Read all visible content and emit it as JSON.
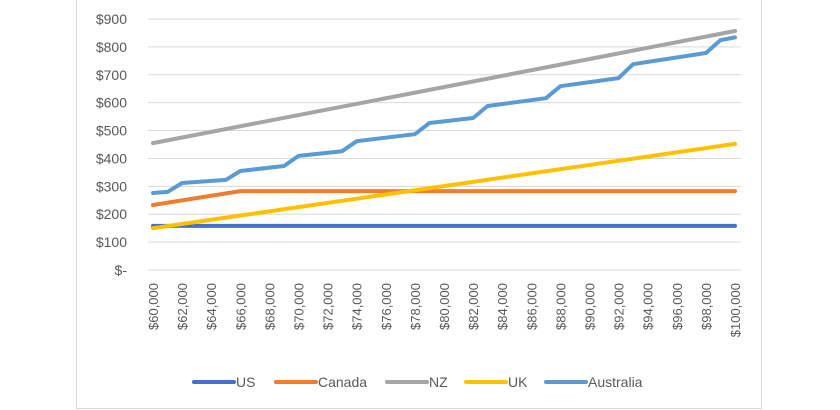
{
  "chart_data": {
    "type": "line",
    "title": "",
    "xlabel": "",
    "ylabel": "",
    "ylim": [
      0,
      900
    ],
    "xlim": [
      60000,
      100000
    ],
    "grid": true,
    "legend_position": "bottom",
    "y_ticks": [
      {
        "value": 0,
        "label": "$-"
      },
      {
        "value": 100,
        "label": "$100"
      },
      {
        "value": 200,
        "label": "$200"
      },
      {
        "value": 300,
        "label": "$300"
      },
      {
        "value": 400,
        "label": "$400"
      },
      {
        "value": 500,
        "label": "$500"
      },
      {
        "value": 600,
        "label": "$600"
      },
      {
        "value": 700,
        "label": "$700"
      },
      {
        "value": 800,
        "label": "$800"
      },
      {
        "value": 900,
        "label": "$900"
      }
    ],
    "x_ticks": [
      {
        "value": 60000,
        "label": "$60,000"
      },
      {
        "value": 62000,
        "label": "$62,000"
      },
      {
        "value": 64000,
        "label": "$64,000"
      },
      {
        "value": 66000,
        "label": "$66,000"
      },
      {
        "value": 68000,
        "label": "$68,000"
      },
      {
        "value": 70000,
        "label": "$70,000"
      },
      {
        "value": 72000,
        "label": "$72,000"
      },
      {
        "value": 74000,
        "label": "$74,000"
      },
      {
        "value": 76000,
        "label": "$76,000"
      },
      {
        "value": 78000,
        "label": "$78,000"
      },
      {
        "value": 80000,
        "label": "$80,000"
      },
      {
        "value": 82000,
        "label": "$82,000"
      },
      {
        "value": 84000,
        "label": "$84,000"
      },
      {
        "value": 86000,
        "label": "$86,000"
      },
      {
        "value": 88000,
        "label": "$88,000"
      },
      {
        "value": 90000,
        "label": "$90,000"
      },
      {
        "value": 92000,
        "label": "$92,000"
      },
      {
        "value": 94000,
        "label": "$94,000"
      },
      {
        "value": 96000,
        "label": "$96,000"
      },
      {
        "value": 98000,
        "label": "$98,000"
      },
      {
        "value": 100000,
        "label": "$100,000"
      }
    ],
    "series": [
      {
        "name": "US",
        "color": "#4472c4",
        "points": [
          [
            60000,
            158
          ],
          [
            100000,
            158
          ]
        ]
      },
      {
        "name": "Canada",
        "color": "#ed7d31",
        "points": [
          [
            60000,
            233
          ],
          [
            66000,
            283
          ],
          [
            100000,
            283
          ]
        ]
      },
      {
        "name": "NZ",
        "color": "#a5a5a5",
        "points": [
          [
            60000,
            455
          ],
          [
            100000,
            857
          ]
        ]
      },
      {
        "name": "UK",
        "color": "#ffc000",
        "points": [
          [
            60000,
            150
          ],
          [
            100000,
            452
          ]
        ]
      },
      {
        "name": "Australia",
        "color": "#5b9bd5",
        "points": [
          [
            60000,
            276
          ],
          [
            61000,
            280
          ],
          [
            62000,
            312
          ],
          [
            65000,
            323
          ],
          [
            66000,
            355
          ],
          [
            69000,
            373
          ],
          [
            70000,
            409
          ],
          [
            73000,
            426
          ],
          [
            74000,
            462
          ],
          [
            78000,
            487
          ],
          [
            79000,
            527
          ],
          [
            82000,
            545
          ],
          [
            83000,
            588
          ],
          [
            87000,
            616
          ],
          [
            88000,
            659
          ],
          [
            92000,
            688
          ],
          [
            93000,
            738
          ],
          [
            98000,
            778
          ],
          [
            99000,
            824
          ],
          [
            100000,
            834
          ]
        ]
      }
    ]
  }
}
